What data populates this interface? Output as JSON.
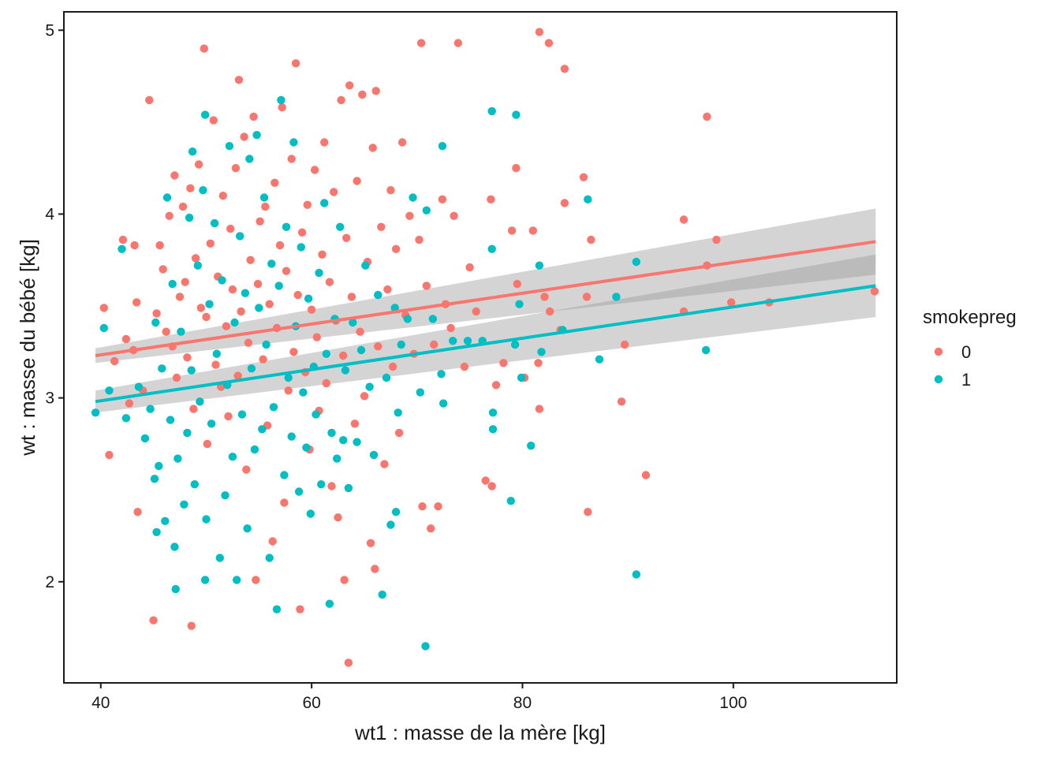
{
  "chart_data": {
    "type": "scatter",
    "xlabel": "wt1 : masse de la mère [kg]",
    "ylabel": "wt : masse du bébé [kg]",
    "xlim": [
      36.5,
      115.5
    ],
    "ylim": [
      1.45,
      5.1
    ],
    "x_ticks": [
      40,
      60,
      80,
      100
    ],
    "y_ticks": [
      2,
      3,
      4,
      5
    ],
    "grid": false,
    "legend": {
      "title": "smokepreg",
      "position": "right",
      "entries": [
        {
          "label": "0",
          "color": "#F8766D"
        },
        {
          "label": "1",
          "color": "#00BFC4"
        }
      ]
    },
    "series": [
      {
        "name": "0",
        "color": "#F8766D",
        "regression": {
          "x": [
            39.5,
            113.5
          ],
          "y": [
            3.23,
            3.85
          ],
          "ci_lower": [
            3.19,
            3.67
          ],
          "ci_upper": [
            3.27,
            4.03
          ]
        },
        "points": [
          [
            40.3,
            3.49
          ],
          [
            40.8,
            2.69
          ],
          [
            41.3,
            3.2
          ],
          [
            42.1,
            3.86
          ],
          [
            42.4,
            3.32
          ],
          [
            42.7,
            2.97
          ],
          [
            43.1,
            3.26
          ],
          [
            43.2,
            3.83
          ],
          [
            43.4,
            3.52
          ],
          [
            43.5,
            2.38
          ],
          [
            44.0,
            3.04
          ],
          [
            44.6,
            4.62
          ],
          [
            45.0,
            1.79
          ],
          [
            45.3,
            3.46
          ],
          [
            45.6,
            3.83
          ],
          [
            45.9,
            3.7
          ],
          [
            46.2,
            3.36
          ],
          [
            46.5,
            3.99
          ],
          [
            46.8,
            3.28
          ],
          [
            47.0,
            4.21
          ],
          [
            47.2,
            3.11
          ],
          [
            47.5,
            3.55
          ],
          [
            47.8,
            4.04
          ],
          [
            48.0,
            3.63
          ],
          [
            48.2,
            3.22
          ],
          [
            48.5,
            4.14
          ],
          [
            48.6,
            1.76
          ],
          [
            48.8,
            2.94
          ],
          [
            49.0,
            3.76
          ],
          [
            49.3,
            4.27
          ],
          [
            49.5,
            3.49
          ],
          [
            49.8,
            4.9
          ],
          [
            50.0,
            3.44
          ],
          [
            50.1,
            2.75
          ],
          [
            50.4,
            3.84
          ],
          [
            50.7,
            4.51
          ],
          [
            50.9,
            3.18
          ],
          [
            51.1,
            3.66
          ],
          [
            51.4,
            3.06
          ],
          [
            51.6,
            4.1
          ],
          [
            51.9,
            3.39
          ],
          [
            52.1,
            2.9
          ],
          [
            52.3,
            3.92
          ],
          [
            52.5,
            3.59
          ],
          [
            52.8,
            4.25
          ],
          [
            53.0,
            3.12
          ],
          [
            53.1,
            4.73
          ],
          [
            53.3,
            3.47
          ],
          [
            53.6,
            4.42
          ],
          [
            53.8,
            2.61
          ],
          [
            54.0,
            3.3
          ],
          [
            54.2,
            3.75
          ],
          [
            54.5,
            4.53
          ],
          [
            54.7,
            2.01
          ],
          [
            54.9,
            3.62
          ],
          [
            55.1,
            3.96
          ],
          [
            55.4,
            3.21
          ],
          [
            55.6,
            4.04
          ],
          [
            55.8,
            2.85
          ],
          [
            56.0,
            3.51
          ],
          [
            56.3,
            2.22
          ],
          [
            56.5,
            4.17
          ],
          [
            56.7,
            3.38
          ],
          [
            57.0,
            3.83
          ],
          [
            57.2,
            4.58
          ],
          [
            57.4,
            2.43
          ],
          [
            57.6,
            3.69
          ],
          [
            57.8,
            3.04
          ],
          [
            58.1,
            4.3
          ],
          [
            58.3,
            3.25
          ],
          [
            58.5,
            4.82
          ],
          [
            58.7,
            3.56
          ],
          [
            58.9,
            1.85
          ],
          [
            59.1,
            3.9
          ],
          [
            59.4,
            3.14
          ],
          [
            59.6,
            4.05
          ],
          [
            59.8,
            2.72
          ],
          [
            60.0,
            3.48
          ],
          [
            60.3,
            4.24
          ],
          [
            60.5,
            3.33
          ],
          [
            60.7,
            2.93
          ],
          [
            61.0,
            3.78
          ],
          [
            61.2,
            4.39
          ],
          [
            61.4,
            3.08
          ],
          [
            61.7,
            3.63
          ],
          [
            61.9,
            2.52
          ],
          [
            62.1,
            4.12
          ],
          [
            62.3,
            3.42
          ],
          [
            62.5,
            2.35
          ],
          [
            62.8,
            4.62
          ],
          [
            63.0,
            3.23
          ],
          [
            63.1,
            2.01
          ],
          [
            63.3,
            3.87
          ],
          [
            63.5,
            1.56
          ],
          [
            63.6,
            4.7
          ],
          [
            63.8,
            3.55
          ],
          [
            64.1,
            2.86
          ],
          [
            64.3,
            4.18
          ],
          [
            64.6,
            3.36
          ],
          [
            64.8,
            4.65
          ],
          [
            65.0,
            3.01
          ],
          [
            65.3,
            3.74
          ],
          [
            65.6,
            2.21
          ],
          [
            65.8,
            4.36
          ],
          [
            66.0,
            2.07
          ],
          [
            66.1,
            4.67
          ],
          [
            66.3,
            3.28
          ],
          [
            66.6,
            3.93
          ],
          [
            66.9,
            2.64
          ],
          [
            67.2,
            3.59
          ],
          [
            67.5,
            4.13
          ],
          [
            67.7,
            3.17
          ],
          [
            68.0,
            3.81
          ],
          [
            68.3,
            2.81
          ],
          [
            68.6,
            4.39
          ],
          [
            68.9,
            3.45
          ],
          [
            69.3,
            3.99
          ],
          [
            69.7,
            3.24
          ],
          [
            70.2,
            3.86
          ],
          [
            70.4,
            4.93
          ],
          [
            70.5,
            2.41
          ],
          [
            70.9,
            3.61
          ],
          [
            71.3,
            2.29
          ],
          [
            71.6,
            3.29
          ],
          [
            72.0,
            2.41
          ],
          [
            72.4,
            4.08
          ],
          [
            72.7,
            3.51
          ],
          [
            73.2,
            3.38
          ],
          [
            73.5,
            3.99
          ],
          [
            73.9,
            4.93
          ],
          [
            74.5,
            3.17
          ],
          [
            75.0,
            3.71
          ],
          [
            75.6,
            3.47
          ],
          [
            76.5,
            2.55
          ],
          [
            77.0,
            4.08
          ],
          [
            77.1,
            2.52
          ],
          [
            77.5,
            3.07
          ],
          [
            78.2,
            3.19
          ],
          [
            79.0,
            3.91
          ],
          [
            79.4,
            4.25
          ],
          [
            79.5,
            3.62
          ],
          [
            80.2,
            3.11
          ],
          [
            81.0,
            3.91
          ],
          [
            81.5,
            3.19
          ],
          [
            81.6,
            2.94
          ],
          [
            81.6,
            4.99
          ],
          [
            82.1,
            3.55
          ],
          [
            82.5,
            4.93
          ],
          [
            82.6,
            3.47
          ],
          [
            83.6,
            3.37
          ],
          [
            84.0,
            4.79
          ],
          [
            84.0,
            4.06
          ],
          [
            85.8,
            4.2
          ],
          [
            86.1,
            3.55
          ],
          [
            86.2,
            2.38
          ],
          [
            86.5,
            3.86
          ],
          [
            89.4,
            2.98
          ],
          [
            89.7,
            3.29
          ],
          [
            91.7,
            2.58
          ],
          [
            95.3,
            3.97
          ],
          [
            95.3,
            3.47
          ],
          [
            97.5,
            4.53
          ],
          [
            97.5,
            3.72
          ],
          [
            98.4,
            3.86
          ],
          [
            99.8,
            3.52
          ],
          [
            103.4,
            3.52
          ],
          [
            113.4,
            3.58
          ]
        ]
      },
      {
        "name": "1",
        "color": "#00BFC4",
        "regression": {
          "x": [
            39.5,
            113.5
          ],
          "y": [
            2.98,
            3.61
          ],
          "ci_lower": [
            2.92,
            3.44
          ],
          "ci_upper": [
            3.04,
            3.78
          ]
        },
        "points": [
          [
            39.5,
            2.92
          ],
          [
            40.3,
            3.38
          ],
          [
            40.8,
            3.04
          ],
          [
            42.0,
            3.81
          ],
          [
            42.4,
            2.89
          ],
          [
            43.6,
            3.06
          ],
          [
            44.2,
            2.78
          ],
          [
            44.7,
            2.94
          ],
          [
            45.1,
            2.56
          ],
          [
            45.2,
            3.41
          ],
          [
            45.3,
            2.27
          ],
          [
            45.5,
            2.63
          ],
          [
            45.8,
            3.16
          ],
          [
            46.1,
            2.33
          ],
          [
            46.3,
            4.09
          ],
          [
            46.6,
            2.88
          ],
          [
            46.8,
            3.62
          ],
          [
            47.0,
            2.19
          ],
          [
            47.1,
            1.96
          ],
          [
            47.3,
            2.67
          ],
          [
            47.6,
            3.36
          ],
          [
            47.9,
            2.42
          ],
          [
            48.2,
            2.81
          ],
          [
            48.4,
            3.98
          ],
          [
            48.6,
            3.15
          ],
          [
            48.7,
            4.34
          ],
          [
            48.9,
            2.53
          ],
          [
            49.2,
            3.72
          ],
          [
            49.4,
            2.98
          ],
          [
            49.7,
            4.13
          ],
          [
            49.9,
            2.01
          ],
          [
            49.9,
            4.54
          ],
          [
            50.0,
            2.34
          ],
          [
            50.3,
            3.51
          ],
          [
            50.5,
            2.86
          ],
          [
            50.8,
            3.95
          ],
          [
            51.0,
            3.24
          ],
          [
            51.3,
            2.13
          ],
          [
            51.5,
            3.64
          ],
          [
            51.8,
            2.47
          ],
          [
            52.0,
            3.07
          ],
          [
            52.2,
            4.37
          ],
          [
            52.5,
            2.68
          ],
          [
            52.7,
            3.41
          ],
          [
            52.9,
            2.01
          ],
          [
            53.2,
            3.88
          ],
          [
            53.4,
            2.91
          ],
          [
            53.7,
            3.57
          ],
          [
            53.9,
            2.29
          ],
          [
            54.1,
            4.3
          ],
          [
            54.3,
            3.16
          ],
          [
            54.6,
            2.72
          ],
          [
            54.8,
            4.43
          ],
          [
            55.0,
            3.49
          ],
          [
            55.3,
            2.83
          ],
          [
            55.5,
            4.09
          ],
          [
            55.7,
            3.29
          ],
          [
            56.0,
            2.13
          ],
          [
            56.2,
            3.73
          ],
          [
            56.4,
            2.95
          ],
          [
            56.7,
            1.85
          ],
          [
            56.9,
            3.61
          ],
          [
            57.1,
            4.62
          ],
          [
            57.4,
            2.58
          ],
          [
            57.6,
            3.93
          ],
          [
            57.8,
            3.11
          ],
          [
            58.1,
            2.79
          ],
          [
            58.3,
            4.39
          ],
          [
            58.5,
            3.39
          ],
          [
            58.8,
            2.49
          ],
          [
            59.0,
            3.82
          ],
          [
            59.2,
            3.03
          ],
          [
            59.5,
            2.73
          ],
          [
            59.7,
            3.54
          ],
          [
            59.9,
            2.37
          ],
          [
            60.2,
            3.17
          ],
          [
            60.4,
            2.91
          ],
          [
            60.7,
            3.68
          ],
          [
            60.9,
            2.53
          ],
          [
            61.2,
            4.06
          ],
          [
            61.4,
            3.24
          ],
          [
            61.7,
            1.88
          ],
          [
            61.9,
            2.81
          ],
          [
            62.2,
            3.43
          ],
          [
            62.4,
            2.67
          ],
          [
            62.7,
            3.93
          ],
          [
            63.0,
            2.77
          ],
          [
            63.2,
            3.15
          ],
          [
            63.5,
            2.51
          ],
          [
            63.9,
            3.41
          ],
          [
            64.3,
            2.76
          ],
          [
            64.7,
            3.26
          ],
          [
            65.1,
            3.72
          ],
          [
            65.5,
            3.06
          ],
          [
            65.9,
            2.69
          ],
          [
            66.3,
            3.56
          ],
          [
            66.7,
            1.93
          ],
          [
            67.1,
            3.11
          ],
          [
            67.5,
            2.31
          ],
          [
            67.9,
            3.49
          ],
          [
            68.0,
            2.38
          ],
          [
            68.2,
            2.92
          ],
          [
            68.5,
            3.29
          ],
          [
            69.1,
            3.43
          ],
          [
            69.6,
            4.09
          ],
          [
            70.3,
            3.03
          ],
          [
            70.8,
            1.65
          ],
          [
            70.9,
            4.02
          ],
          [
            71.5,
            3.43
          ],
          [
            72.3,
            3.13
          ],
          [
            72.4,
            4.37
          ],
          [
            72.5,
            2.97
          ],
          [
            73.4,
            3.31
          ],
          [
            74.8,
            3.31
          ],
          [
            76.2,
            3.31
          ],
          [
            77.1,
            4.56
          ],
          [
            77.1,
            3.81
          ],
          [
            77.2,
            2.92
          ],
          [
            77.2,
            2.83
          ],
          [
            78.9,
            2.44
          ],
          [
            79.3,
            3.29
          ],
          [
            79.4,
            4.54
          ],
          [
            79.7,
            3.51
          ],
          [
            79.9,
            3.11
          ],
          [
            80.8,
            2.74
          ],
          [
            81.6,
            3.72
          ],
          [
            81.8,
            3.25
          ],
          [
            83.8,
            3.37
          ],
          [
            86.2,
            4.08
          ],
          [
            87.3,
            3.21
          ],
          [
            88.9,
            3.55
          ],
          [
            90.8,
            2.04
          ],
          [
            90.8,
            3.74
          ],
          [
            97.4,
            3.26
          ]
        ]
      }
    ]
  }
}
